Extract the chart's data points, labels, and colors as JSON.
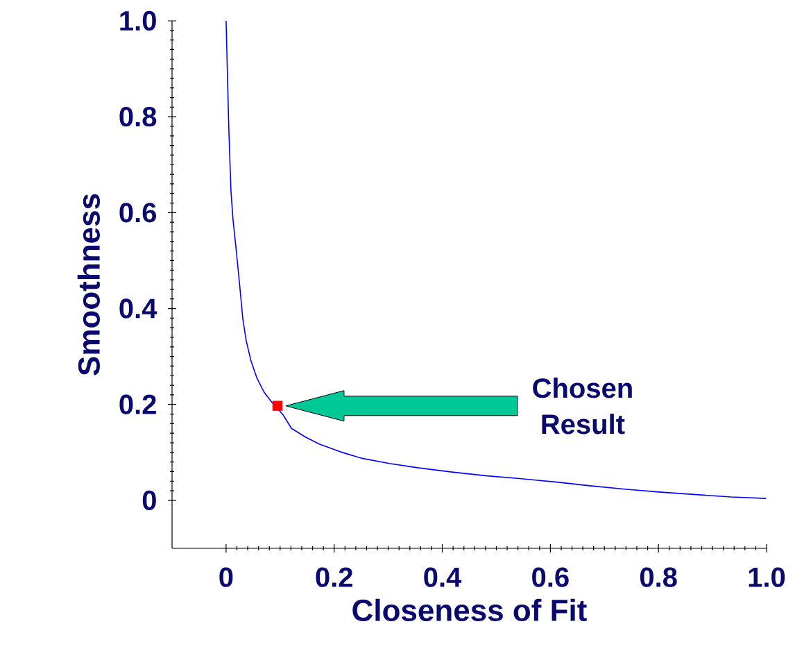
{
  "chart_data": {
    "type": "line",
    "xlabel": "Closeness of Fit",
    "ylabel": "Smoothness",
    "xlim": [
      -0.1,
      1.0
    ],
    "ylim": [
      -0.1,
      1.0
    ],
    "xticks": [
      0,
      0.2,
      0.4,
      0.6,
      0.8,
      {
        "value": 1.0,
        "label": "1.0"
      }
    ],
    "yticks": [
      0,
      0.2,
      0.4,
      0.6,
      0.8,
      {
        "value": 1.0,
        "label": "1.0"
      }
    ],
    "grid": false,
    "marker": "none",
    "line_style": "solid",
    "series": [
      {
        "color": "#0000ff",
        "x": [
          0,
          0.005,
          0.009,
          0.013,
          0.018,
          0.025,
          0.031,
          0.037,
          0.046,
          0.057,
          0.07,
          0.085,
          0.105,
          0.121,
          0.147,
          0.173,
          0.212,
          0.25,
          0.302,
          0.354,
          0.418,
          0.483,
          0.547,
          0.612,
          0.676,
          0.741,
          0.805,
          0.87,
          0.934,
          0.999
        ],
        "values": [
          1.0,
          0.776,
          0.645,
          0.583,
          0.53,
          0.45,
          0.378,
          0.334,
          0.291,
          0.255,
          0.226,
          0.204,
          0.179,
          0.15,
          0.132,
          0.117,
          0.101,
          0.088,
          0.077,
          0.068,
          0.059,
          0.051,
          0.045,
          0.038,
          0.03,
          0.023,
          0.017,
          0.012,
          0.007,
          0.004
        ]
      },
      {
        "type": "scatter",
        "color": "#ff0000",
        "marker": "square",
        "x": [
          0.095
        ],
        "values": [
          0.197
        ]
      }
    ],
    "annotations": [
      "Chosen Result"
    ]
  }
}
